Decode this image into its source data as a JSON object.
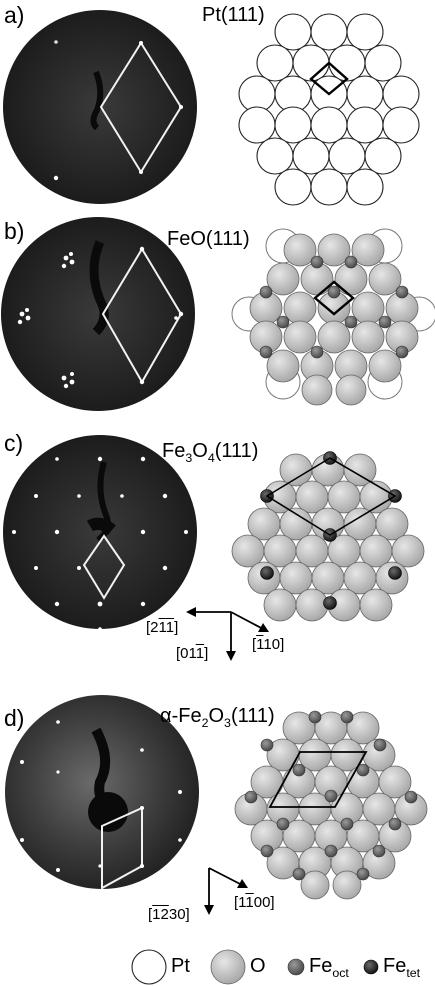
{
  "panels": [
    {
      "label": "a)",
      "title": "Pt(111)"
    },
    {
      "label": "b)",
      "title": "FeO(111)"
    },
    {
      "label": "c)",
      "title_main": "Fe",
      "title_sub": "3",
      "title_mid": "O",
      "title_sub2": "4",
      "title_end": "(111)"
    },
    {
      "label": "d)",
      "title_main": "α-Fe",
      "title_sub": "2",
      "title_mid": "O",
      "title_sub2": "3",
      "title_end": "(111)"
    }
  ],
  "directions_c": {
    "d1_pre": "[2",
    "d1_b1": "1",
    "d1_b2": "1",
    "d1_post": "]",
    "d2_pre": "[01",
    "d2_b1": "1",
    "d2_post": "]",
    "d3_pre": "[",
    "d3_b1": "1",
    "d3_post": "10]"
  },
  "directions_d": {
    "d1_pre": "[",
    "d1_b1": "1",
    "d1_b2": "2",
    "d1_post": "30]",
    "d2_pre": "[1",
    "d2_b1": "1",
    "d2_post": "00]"
  },
  "legend": {
    "pt": "Pt",
    "o": "O",
    "fe": "Fe",
    "oct": "oct",
    "tet": "tet"
  }
}
